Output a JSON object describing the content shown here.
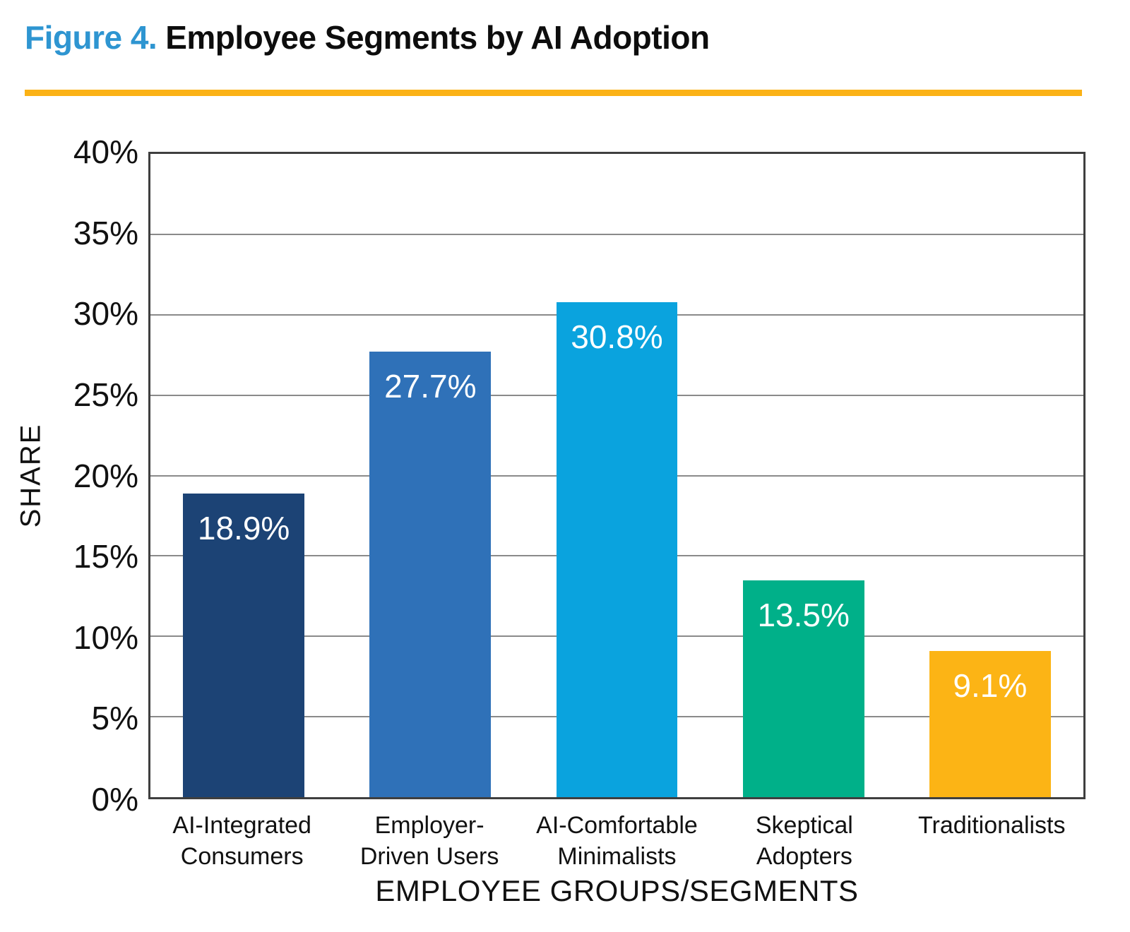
{
  "header": {
    "figure_label": "Figure 4.",
    "title": "Employee Segments by AI Adoption",
    "accent_color": "#fbb216",
    "figure_label_color": "#2e95d1"
  },
  "chart_data": {
    "type": "bar",
    "title": "Employee Segments by AI Adoption",
    "xlabel": "EMPLOYEE GROUPS/SEGMENTS",
    "ylabel": "SHARE",
    "ylim": [
      0,
      40
    ],
    "ytick_step": 5,
    "ytick_labels": [
      "0%",
      "5%",
      "10%",
      "15%",
      "20%",
      "25%",
      "30%",
      "35%",
      "40%"
    ],
    "grid": "horizontal-gray-lines",
    "legend": "none",
    "categories": [
      "AI-Integrated Consumers",
      "Employer-Driven Users",
      "AI-Comfortable Minimalists",
      "Skeptical Adopters",
      "Traditionalists"
    ],
    "values": [
      18.9,
      27.7,
      30.8,
      13.5,
      9.1
    ],
    "value_labels": [
      "18.9%",
      "27.7%",
      "30.8%",
      "13.5%",
      "9.1%"
    ],
    "bar_colors": [
      "#1c4375",
      "#2f71b8",
      "#0aa3de",
      "#00b089",
      "#fcb415"
    ]
  }
}
